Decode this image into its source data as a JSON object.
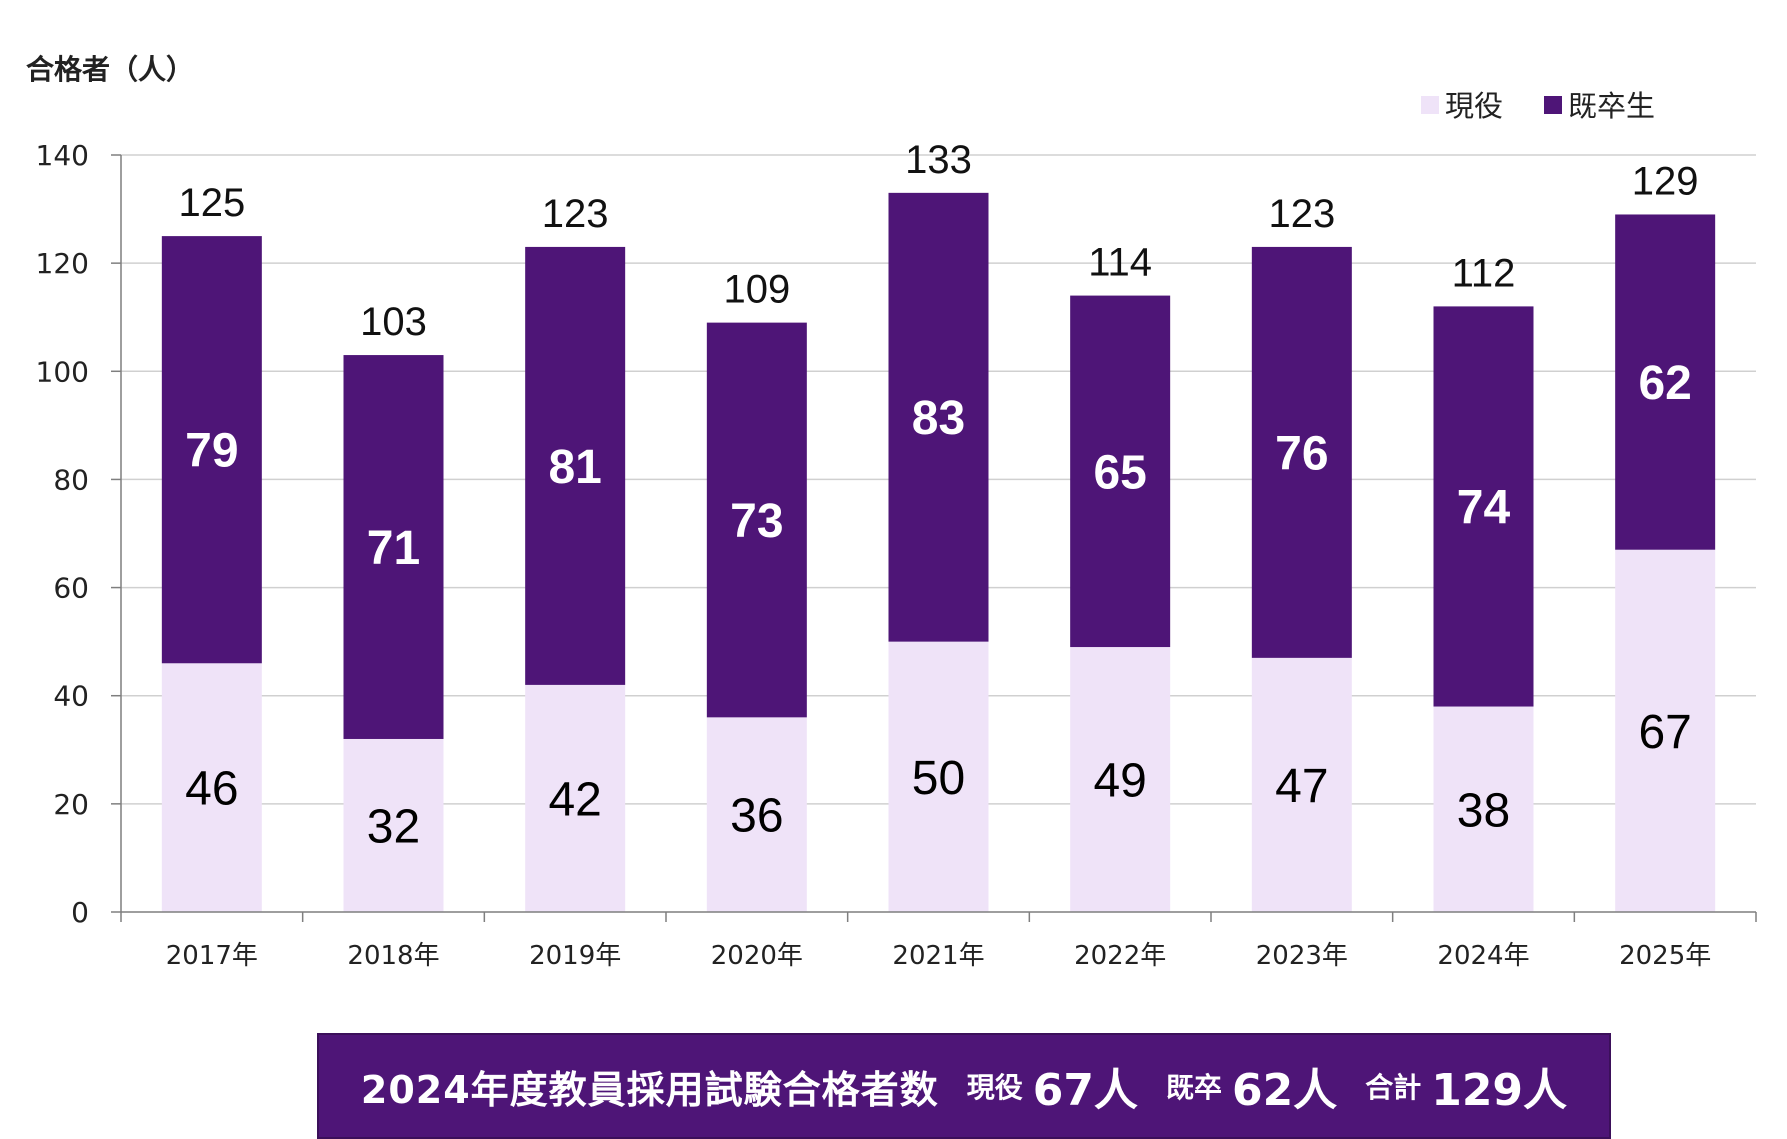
{
  "chart_data": {
    "type": "bar",
    "stacked": true,
    "ylabel": "合格者（人）",
    "ylim": [
      0,
      140
    ],
    "yticks": [
      0,
      20,
      40,
      60,
      80,
      100,
      120,
      140
    ],
    "grid": true,
    "legend_position": "top-right",
    "categories": [
      "2017年",
      "2018年",
      "2019年",
      "2020年",
      "2021年",
      "2022年",
      "2023年",
      "2024年",
      "2025年"
    ],
    "series": [
      {
        "name": "現役",
        "color": "#efe3f8",
        "label_color": "#000000",
        "values": [
          46,
          32,
          42,
          36,
          50,
          49,
          47,
          38,
          67
        ]
      },
      {
        "name": "既卒生",
        "color": "#4e1577",
        "label_color": "#ffffff",
        "values": [
          79,
          71,
          81,
          73,
          83,
          65,
          76,
          74,
          62
        ]
      }
    ],
    "totals": [
      125,
      103,
      123,
      109,
      133,
      114,
      123,
      112,
      129
    ]
  },
  "banner": {
    "title": "2024年度教員採用試験合格者数",
    "current_label": "現役",
    "current_value": "67人",
    "graduate_label": "既卒",
    "graduate_value": "62人",
    "total_label": "合計",
    "total_value": "129人"
  }
}
